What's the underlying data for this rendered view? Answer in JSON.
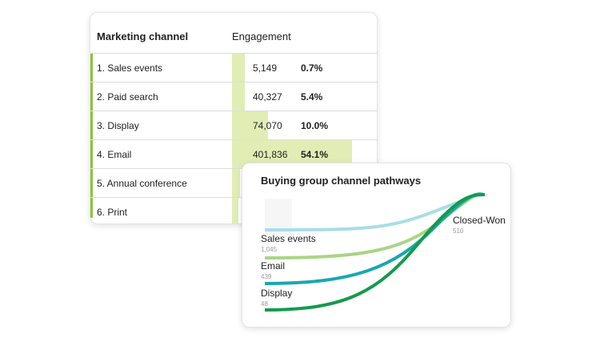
{
  "table": {
    "headers": [
      "Marketing channel",
      "Engagement"
    ],
    "rows": [
      [
        "1.  Sales events",
        "5,149",
        "0.7%"
      ],
      [
        "2. Paid search",
        "40,327",
        "5.4%"
      ],
      [
        "3. Display",
        "74,070",
        "10.0%"
      ],
      [
        "4. Email",
        "401,836",
        "54.1%"
      ],
      [
        "5. Annual conference"
      ],
      [
        "6. Print"
      ]
    ]
  },
  "pathways": {
    "title": "Buying group channel pathways",
    "sources": [
      {
        "label": "Sales events",
        "count": "1,045"
      },
      {
        "label": "Email",
        "count": "439"
      },
      {
        "label": "Display",
        "count": "48"
      }
    ],
    "target": {
      "label": "Closed-Won",
      "count": "510"
    }
  }
}
